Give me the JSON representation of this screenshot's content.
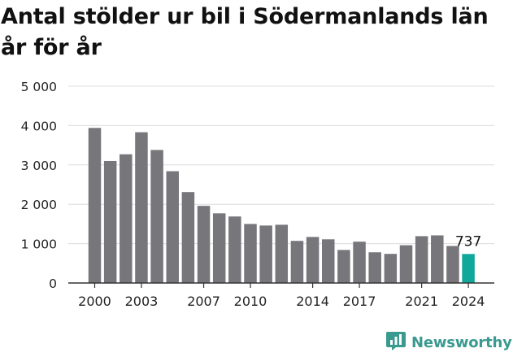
{
  "title": "Antal stölder ur bil i Södermanlands län år för år",
  "chart_data": {
    "type": "bar",
    "title": "Antal stölder ur bil i Södermanlands län år för år",
    "xlabel": "",
    "ylabel": "",
    "ylim": [
      0,
      5000
    ],
    "yticks": [
      0,
      1000,
      2000,
      3000,
      4000,
      5000
    ],
    "ytick_labels": [
      "0",
      "1 000",
      "2 000",
      "3 000",
      "4 000",
      "5 000"
    ],
    "xtick_labels": [
      "2000",
      "2003",
      "2007",
      "2010",
      "2014",
      "2017",
      "2021",
      "2024"
    ],
    "grid": true,
    "categories": [
      "2000",
      "2001",
      "2002",
      "2003",
      "2004",
      "2005",
      "2006",
      "2007",
      "2008",
      "2009",
      "2010",
      "2011",
      "2012",
      "2013",
      "2014",
      "2015",
      "2016",
      "2017",
      "2018",
      "2019",
      "2020",
      "2021",
      "2022",
      "2023",
      "2024"
    ],
    "values": [
      3940,
      3100,
      3270,
      3830,
      3380,
      2840,
      2310,
      1960,
      1770,
      1690,
      1500,
      1460,
      1480,
      1070,
      1170,
      1110,
      840,
      1050,
      780,
      740,
      960,
      1190,
      1210,
      940,
      737
    ],
    "highlight": {
      "category": "2024",
      "label": "737"
    },
    "colors": {
      "bar": "#77767b",
      "highlight": "#0fa89b",
      "grid": "#dcdcdc",
      "axis": "#333333"
    }
  },
  "footer": {
    "brand": "Newsworthy",
    "icon": "bar-chart-icon",
    "brand_color": "#3a9a90"
  }
}
